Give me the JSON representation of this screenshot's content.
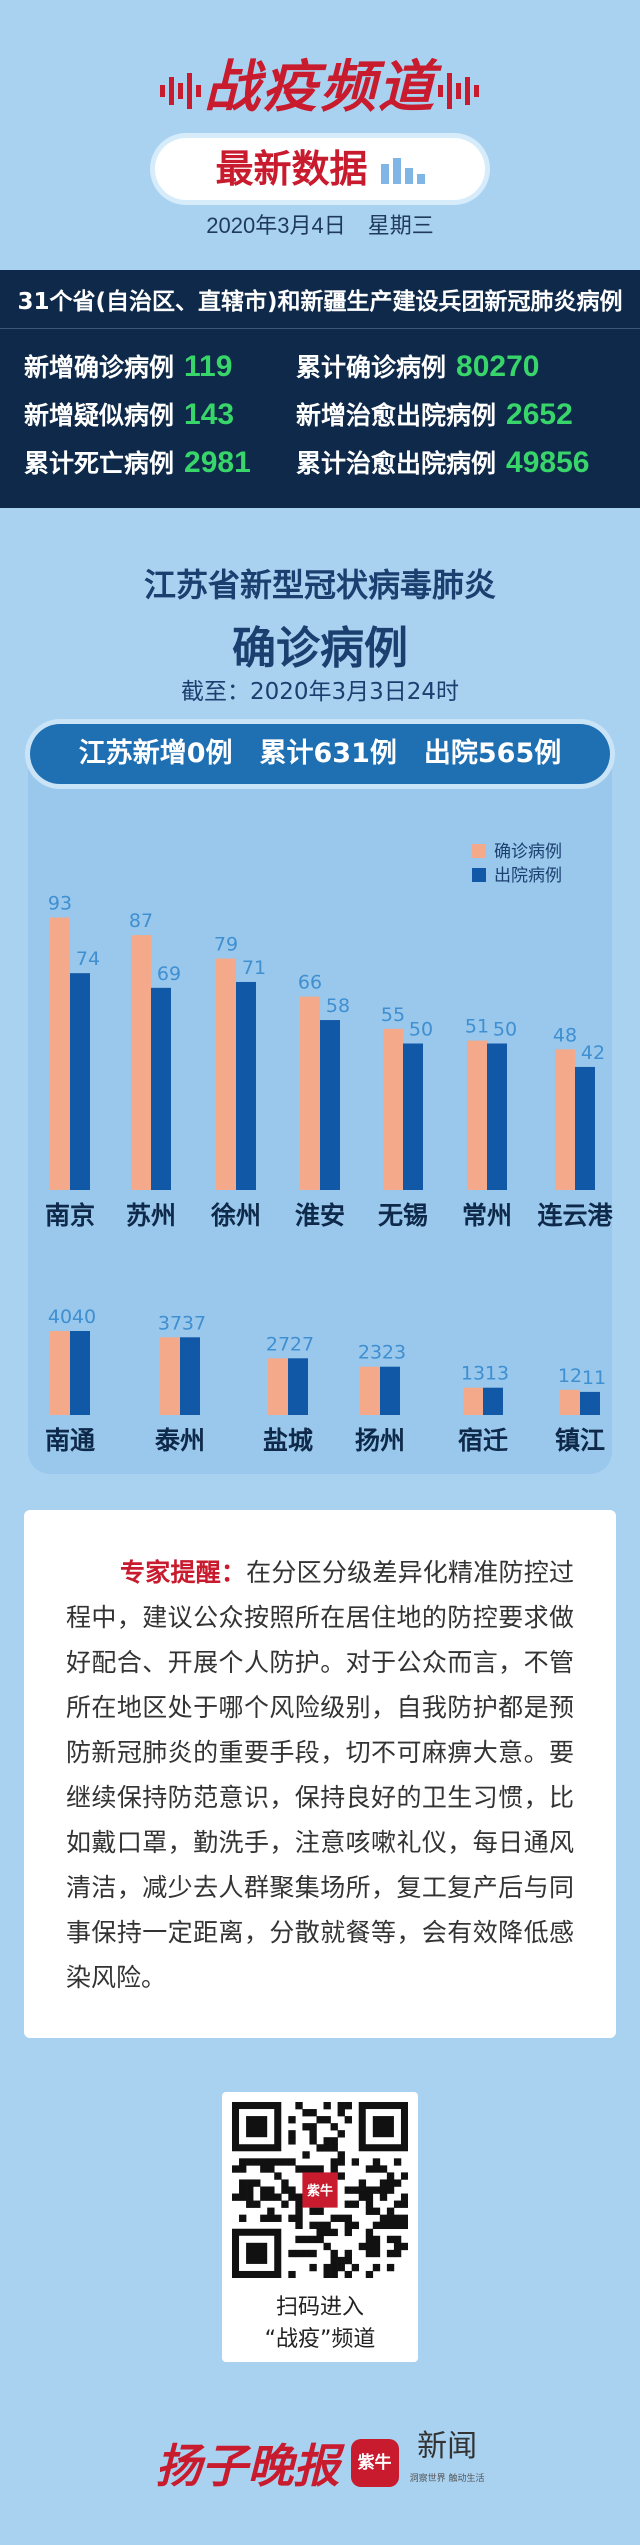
{
  "header": {
    "brand": "战疫频道",
    "badge": "最新数据",
    "date": "2020年3月4日　星期三"
  },
  "national": {
    "title": "31个省(自治区、直辖市)和新疆生产建设兵团新冠肺炎病例",
    "stats": [
      {
        "label": "新增确诊病例",
        "value": "119"
      },
      {
        "label": "累计确诊病例",
        "value": "80270"
      },
      {
        "label": "新增疑似病例",
        "value": "143"
      },
      {
        "label": "新增治愈出院病例",
        "value": "2652"
      },
      {
        "label": "累计死亡病例",
        "value": "2981"
      },
      {
        "label": "累计治愈出院病例",
        "value": "49856"
      }
    ]
  },
  "section": {
    "title1": "江苏省新型冠状病毒肺炎",
    "title2": "确诊病例",
    "cutoff": "截至：2020年3月3日24时",
    "summary": "江苏新增0例　累计631例　出院565例"
  },
  "chart_data": {
    "type": "bar",
    "categories": [
      "南京",
      "苏州",
      "徐州",
      "淮安",
      "无锡",
      "常州",
      "连云港",
      "南通",
      "泰州",
      "盐城",
      "扬州",
      "宿迁",
      "镇江"
    ],
    "series": [
      {
        "name": "确诊病例",
        "values": [
          93,
          87,
          79,
          66,
          55,
          51,
          48,
          40,
          37,
          27,
          23,
          13,
          12
        ],
        "color": "#f3a98a"
      },
      {
        "name": "出院病例",
        "values": [
          74,
          69,
          71,
          58,
          50,
          50,
          42,
          40,
          37,
          27,
          23,
          13,
          11
        ],
        "color": "#1158a7"
      }
    ],
    "legend_position": "top-right",
    "data_label_color": "#3f8fd1"
  },
  "tip": {
    "lead": "专家提醒：",
    "text": "在分区分级差异化精准防控过程中，建议公众按照所在居住地的防控要求做好配合、开展个人防护。对于公众而言，不管所在地区处于哪个风险级别，自我防护都是预防新冠肺炎的重要手段，切不可麻痹大意。要继续保持防范意识，保持良好的卫生习惯，比如戴口罩，勤洗手，注意咳嗽礼仪，每日通风清洁，减少去人群聚集场所，复工复产后与同事保持一定距离，分散就餐等，会有效降低感染风险。"
  },
  "qr": {
    "logo": "紫牛",
    "caption1": "扫码进入",
    "caption2": "“战疫”频道"
  },
  "footer": {
    "calligraphy": "扬子晚报",
    "logo": "紫牛",
    "news": "新闻",
    "sub": "洞察世界 触动生活"
  },
  "colors": {
    "background": "#a9d2f1",
    "brand_red": "#c81b2e",
    "navy": "#0e2949",
    "green": "#38d56a"
  }
}
